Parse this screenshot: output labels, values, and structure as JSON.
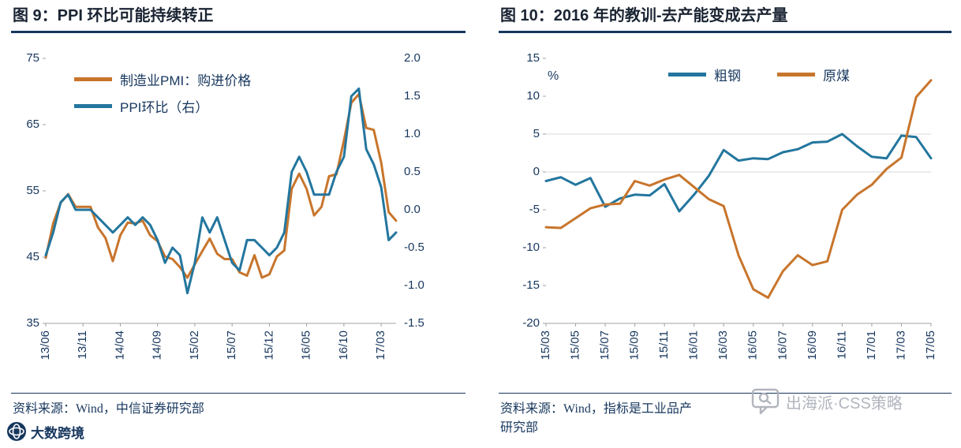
{
  "colors": {
    "navy": "#17375E",
    "title": "#1A2433",
    "orange": "#C8752C",
    "blue": "#23769E",
    "axis": "#A0A0A0",
    "grid": "#D8D8D8",
    "watermark": "#AEB2BB"
  },
  "chart_data": [
    {
      "type": "line",
      "title": "图 9：PPI 环比可能持续转正",
      "x": [
        "13/06",
        "13/07",
        "13/08",
        "13/09",
        "13/10",
        "13/11",
        "13/12",
        "14/01",
        "14/02",
        "14/03",
        "14/04",
        "14/05",
        "14/06",
        "14/07",
        "14/08",
        "14/09",
        "14/10",
        "14/11",
        "14/12",
        "15/01",
        "15/02",
        "15/03",
        "15/04",
        "15/05",
        "15/06",
        "15/07",
        "15/08",
        "15/09",
        "15/10",
        "15/11",
        "15/12",
        "16/01",
        "16/02",
        "16/03",
        "16/04",
        "16/05",
        "16/06",
        "16/07",
        "16/08",
        "16/09",
        "16/10",
        "16/11",
        "16/12",
        "17/01",
        "17/02",
        "17/03",
        "17/04",
        "17/05"
      ],
      "x_ticks": [
        "13/06",
        "13/11",
        "14/04",
        "14/09",
        "15/02",
        "15/07",
        "15/12",
        "16/05",
        "16/10",
        "17/03"
      ],
      "axes": {
        "left": {
          "range": [
            35,
            75
          ],
          "ticks": [
            "75",
            "65",
            "55",
            "45",
            "35"
          ]
        },
        "right": {
          "range": [
            -1.5,
            2.0
          ],
          "ticks": [
            "2.0",
            "1.5",
            "1.0",
            "0.5",
            "0.0",
            "-0.5",
            "-1.0",
            "-1.5"
          ]
        }
      },
      "gridlines": [],
      "series": [
        {
          "name": "制造业PMI：购进价格",
          "axis": "left",
          "color": "#C8752C",
          "values": [
            44.9,
            50.1,
            53.2,
            54.5,
            52.6,
            52.6,
            52.6,
            49.5,
            47.9,
            44.4,
            48.3,
            50.2,
            50.1,
            50.5,
            48.3,
            47.4,
            45.1,
            44.7,
            43.5,
            41.9,
            43.9,
            45.9,
            47.8,
            45.5,
            44.7,
            44.7,
            42.7,
            42.2,
            45.3,
            41.9,
            42.4,
            45.1,
            46.0,
            55.3,
            57.6,
            55.3,
            51.3,
            52.6,
            57.2,
            57.5,
            62.6,
            68.3,
            69.6,
            64.5,
            64.2,
            59.3,
            51.8,
            50.5
          ]
        },
        {
          "name": "PPI环比（右）",
          "axis": "right",
          "color": "#23769E",
          "values": [
            -0.6,
            -0.3,
            0.1,
            0.2,
            0.0,
            0.0,
            0.0,
            -0.1,
            -0.2,
            -0.3,
            -0.2,
            -0.1,
            -0.2,
            -0.1,
            -0.2,
            -0.4,
            -0.7,
            -0.5,
            -0.6,
            -1.1,
            -0.7,
            -0.1,
            -0.3,
            -0.1,
            -0.4,
            -0.7,
            -0.8,
            -0.4,
            -0.4,
            -0.5,
            -0.6,
            -0.5,
            -0.3,
            0.5,
            0.7,
            0.5,
            0.2,
            0.2,
            0.2,
            0.5,
            0.7,
            1.5,
            1.6,
            0.8,
            0.6,
            0.3,
            -0.4,
            -0.3
          ]
        }
      ],
      "legend_position": "top-left-inside",
      "source": "资料来源：Wind，中信证券研究部"
    },
    {
      "type": "line",
      "title": "图 10：2016 年的教训-去产能变成去产量",
      "unit_label": "%",
      "x": [
        "15/03",
        "15/04",
        "15/05",
        "15/06",
        "15/07",
        "15/08",
        "15/09",
        "15/10",
        "15/11",
        "15/12",
        "16/01",
        "16/02",
        "16/03",
        "16/04",
        "16/05",
        "16/06",
        "16/07",
        "16/08",
        "16/09",
        "16/10",
        "16/11",
        "16/12",
        "17/01",
        "17/02",
        "17/03",
        "17/04",
        "17/05"
      ],
      "x_ticks": [
        "15/03",
        "15/05",
        "15/07",
        "15/09",
        "15/11",
        "16/01",
        "16/03",
        "16/05",
        "16/07",
        "16/09",
        "16/11",
        "17/01",
        "17/03",
        "17/05"
      ],
      "axes": {
        "left": {
          "range": [
            -20,
            15
          ],
          "ticks": [
            "15",
            "10",
            "5",
            "0",
            "-5",
            "-10",
            "-15",
            "-20"
          ]
        }
      },
      "gridlines": [
        5,
        0
      ],
      "series": [
        {
          "name": "粗钢",
          "axis": "left",
          "color": "#23769E",
          "values": [
            -1.2,
            -0.7,
            -1.7,
            -0.8,
            -4.6,
            -3.5,
            -3.0,
            -3.1,
            -1.6,
            -5.2,
            -3.0,
            -0.5,
            2.9,
            1.5,
            1.8,
            1.7,
            2.6,
            3.0,
            3.9,
            4.0,
            5.0,
            3.4,
            2.0,
            1.8,
            4.8,
            4.6,
            1.8
          ]
        },
        {
          "name": "原煤",
          "axis": "left",
          "color": "#C8752C",
          "values": [
            -7.3,
            -7.4,
            -6.1,
            -4.8,
            -4.3,
            -4.2,
            -1.2,
            -1.8,
            -1.0,
            -0.4,
            -2.0,
            -3.6,
            -4.5,
            -11.0,
            -15.5,
            -16.6,
            -13.1,
            -11.0,
            -12.3,
            -11.8,
            -5.0,
            -3.0,
            -1.7,
            0.4,
            1.9,
            9.9,
            12.1
          ]
        }
      ],
      "legend_position": "top-center-inside",
      "source_line1": "资料来源：Wind，指标是工业品产",
      "source_line2": "研究部"
    }
  ],
  "watermarks": {
    "left_logo_text": "大数跨境",
    "right_text": "出海派·CSS策略"
  }
}
